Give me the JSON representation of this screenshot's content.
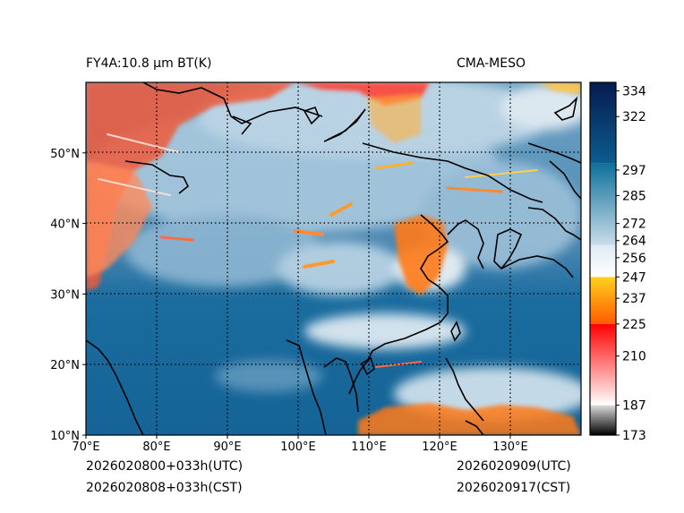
{
  "header": {
    "left_title": "FY4A:10.8 μm BT(K)",
    "right_title": "CMA-MESO"
  },
  "footer": {
    "init_utc": "2026020800+033h(UTC)",
    "init_cst": "2026020808+033h(CST)",
    "valid_utc": "2026020909(UTC)",
    "valid_cst": "2026020917(CST)"
  },
  "map": {
    "lon_range": [
      70,
      140
    ],
    "lat_range": [
      10,
      60
    ],
    "lon_ticks": [
      {
        "value": 70,
        "label": "70°E"
      },
      {
        "value": 80,
        "label": "80°E"
      },
      {
        "value": 90,
        "label": "90°E"
      },
      {
        "value": 100,
        "label": "100°E"
      },
      {
        "value": 110,
        "label": "110°E"
      },
      {
        "value": 120,
        "label": "120°E"
      },
      {
        "value": 130,
        "label": "130°E"
      }
    ],
    "lat_ticks": [
      {
        "value": 10,
        "label": "10°N"
      },
      {
        "value": 20,
        "label": "20°N"
      },
      {
        "value": 30,
        "label": "30°N"
      },
      {
        "value": 40,
        "label": "40°N"
      },
      {
        "value": 50,
        "label": "50°N"
      }
    ],
    "gridlines": "dotted"
  },
  "colorbar": {
    "variable": "brightness temperature (K)",
    "range": [
      173,
      338
    ],
    "ticks": [
      173,
      187,
      210,
      225,
      237,
      247,
      256,
      264,
      272,
      285,
      297,
      322,
      334
    ],
    "segments": [
      {
        "from": 173,
        "to": 187,
        "top": "#dcdcdc",
        "bottom": "#000000"
      },
      {
        "from": 187,
        "to": 225,
        "top": "#ff0000",
        "bottom": "#ffffff"
      },
      {
        "from": 225,
        "to": 247,
        "top": "#ffd21e",
        "bottom": "#ff5a00"
      },
      {
        "from": 247,
        "to": 262,
        "top": "#ddeaf2",
        "bottom": "#ffffff"
      },
      {
        "from": 262,
        "to": 300,
        "top": "#0f6f9a",
        "bottom": "#c8dde9"
      },
      {
        "from": 300,
        "to": 338,
        "top": "#061a4e",
        "bottom": "#0c5d8e"
      }
    ]
  }
}
